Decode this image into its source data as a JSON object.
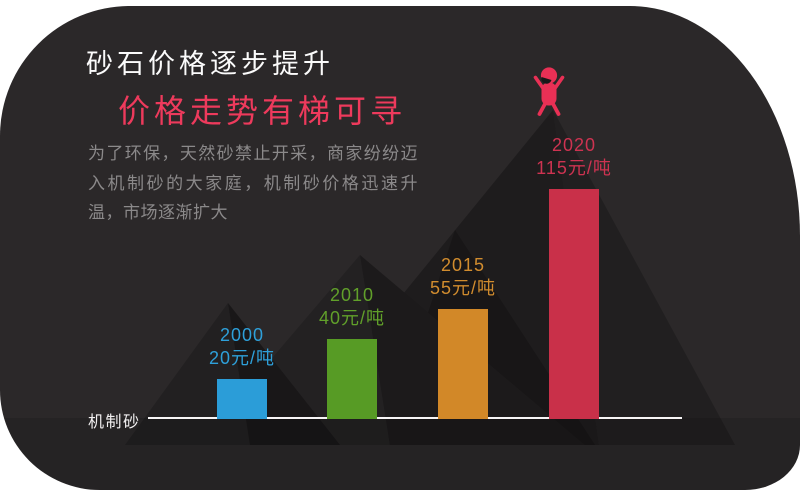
{
  "page": {
    "title": "砂石价格逐步提升",
    "subtitle": "价格走势有梯可寻",
    "description": "为了环保，天然砂禁止开采，商家纷纷迈入机制砂的大家庭，机制砂价格迅速升温，市场逐渐扩大",
    "axis_label": "机制砂"
  },
  "colors": {
    "page_background": "#FFFFFF",
    "blob_background": "#2B2829",
    "title": "#FBFBFB",
    "subtitle": "#EE3A5C",
    "description": "#8B898A",
    "axis_label": "#F2F0F1",
    "baseline": "#F7F5F6",
    "person": "#E93055"
  },
  "chart_data": {
    "type": "bar",
    "title": "砂石价格逐步提升",
    "subtitle": "价格走势有梯可寻",
    "categories": [
      "2000",
      "2010",
      "2015",
      "2020"
    ],
    "values": [
      20,
      40,
      55,
      115
    ],
    "unit": "元/吨",
    "value_labels": [
      "20元/吨",
      "40元/吨",
      "55元/吨",
      "115元/吨"
    ],
    "baseline_label": "机制砂",
    "bar_colors": [
      "#2B9DD8",
      "#579B25",
      "#D28828",
      "#C93049"
    ],
    "label_colors": [
      "#2EA0DA",
      "#61A02A",
      "#D18C2E",
      "#CE3351"
    ],
    "legend": "none",
    "gridlines": false,
    "value_axis_visible": false
  }
}
